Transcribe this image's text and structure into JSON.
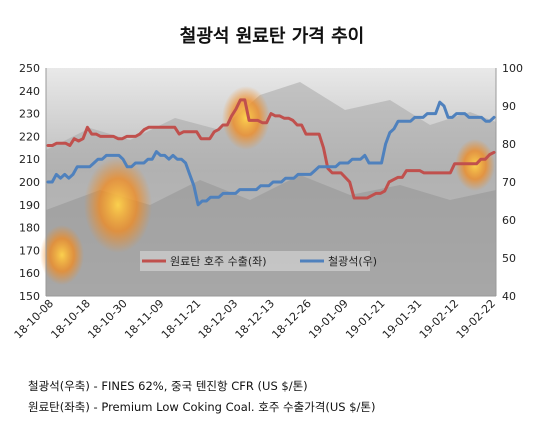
{
  "chart_data": {
    "type": "line",
    "title": "철광석 원료탄 가격 추이",
    "x_ticks": [
      "18-10-08",
      "18-10-18",
      "18-10-30",
      "18-11-09",
      "18-11-21",
      "18-12-03",
      "18-12-13",
      "18-12-26",
      "19-01-09",
      "19-01-21",
      "19-01-31",
      "19-02-12",
      "19-02-22"
    ],
    "left_axis": {
      "ylim": [
        150,
        250
      ],
      "ticks": [
        150,
        160,
        170,
        180,
        190,
        200,
        210,
        220,
        230,
        240,
        250
      ]
    },
    "right_axis": {
      "ylim": [
        40,
        100
      ],
      "ticks": [
        40,
        50,
        60,
        70,
        80,
        90,
        100
      ]
    },
    "legend": {
      "placement": "center"
    },
    "series": [
      {
        "name": "원료탄 호주 수출(좌)",
        "axis": "left",
        "color": "#c0504d",
        "values": [
          216,
          216,
          217,
          217,
          217,
          216,
          219,
          218,
          219,
          224,
          221,
          221,
          220,
          220,
          220,
          220,
          219,
          219,
          220,
          220,
          220,
          221,
          223,
          224,
          224,
          224,
          224,
          224,
          224,
          224,
          221,
          222,
          222,
          222,
          222,
          219,
          219,
          219,
          222,
          223,
          225,
          225,
          229,
          232,
          236,
          236,
          227,
          227,
          227,
          226,
          226,
          230,
          229,
          229,
          228,
          228,
          227,
          225,
          225,
          221,
          221,
          221,
          221,
          215,
          206,
          204,
          204,
          204,
          202,
          200,
          193,
          193,
          193,
          193,
          194,
          195,
          195,
          196,
          200,
          201,
          202,
          202,
          205,
          205,
          205,
          205,
          204,
          204,
          204,
          204,
          204,
          204,
          204,
          208,
          208,
          208,
          208,
          208,
          208,
          210,
          210,
          212,
          213
        ]
      },
      {
        "name": "철광석(우)",
        "axis": "right",
        "color": "#4f81bd",
        "values": [
          70,
          70,
          72,
          71,
          72,
          71,
          72,
          74,
          74,
          74,
          74,
          75,
          76,
          76,
          77,
          77,
          77,
          77,
          76,
          74,
          74,
          75,
          75,
          75,
          76,
          76,
          78,
          77,
          77,
          76,
          77,
          76,
          76,
          75,
          72,
          69,
          64,
          65,
          65,
          66,
          66,
          66,
          67,
          67,
          67,
          67,
          68,
          68,
          68,
          68,
          68,
          69,
          69,
          69,
          70,
          70,
          70,
          71,
          71,
          71,
          72,
          72,
          72,
          72,
          73,
          74,
          74,
          74,
          74,
          74,
          75,
          75,
          75,
          76,
          76,
          76,
          77,
          75,
          75,
          75,
          75,
          80,
          83,
          84,
          86,
          86,
          86,
          86,
          87,
          87,
          87,
          88,
          88,
          88,
          91,
          90,
          87,
          87,
          88,
          88,
          88,
          87,
          87,
          87,
          87,
          86,
          86,
          87
        ]
      }
    ],
    "notes": [
      "철광석(우축) - FINES 62%, 중국 텐진항 CFR (US $/톤)",
      "원료탄(좌축) - Premium Low Coking Coal. 호주 수출가격(US $/톤)"
    ]
  }
}
